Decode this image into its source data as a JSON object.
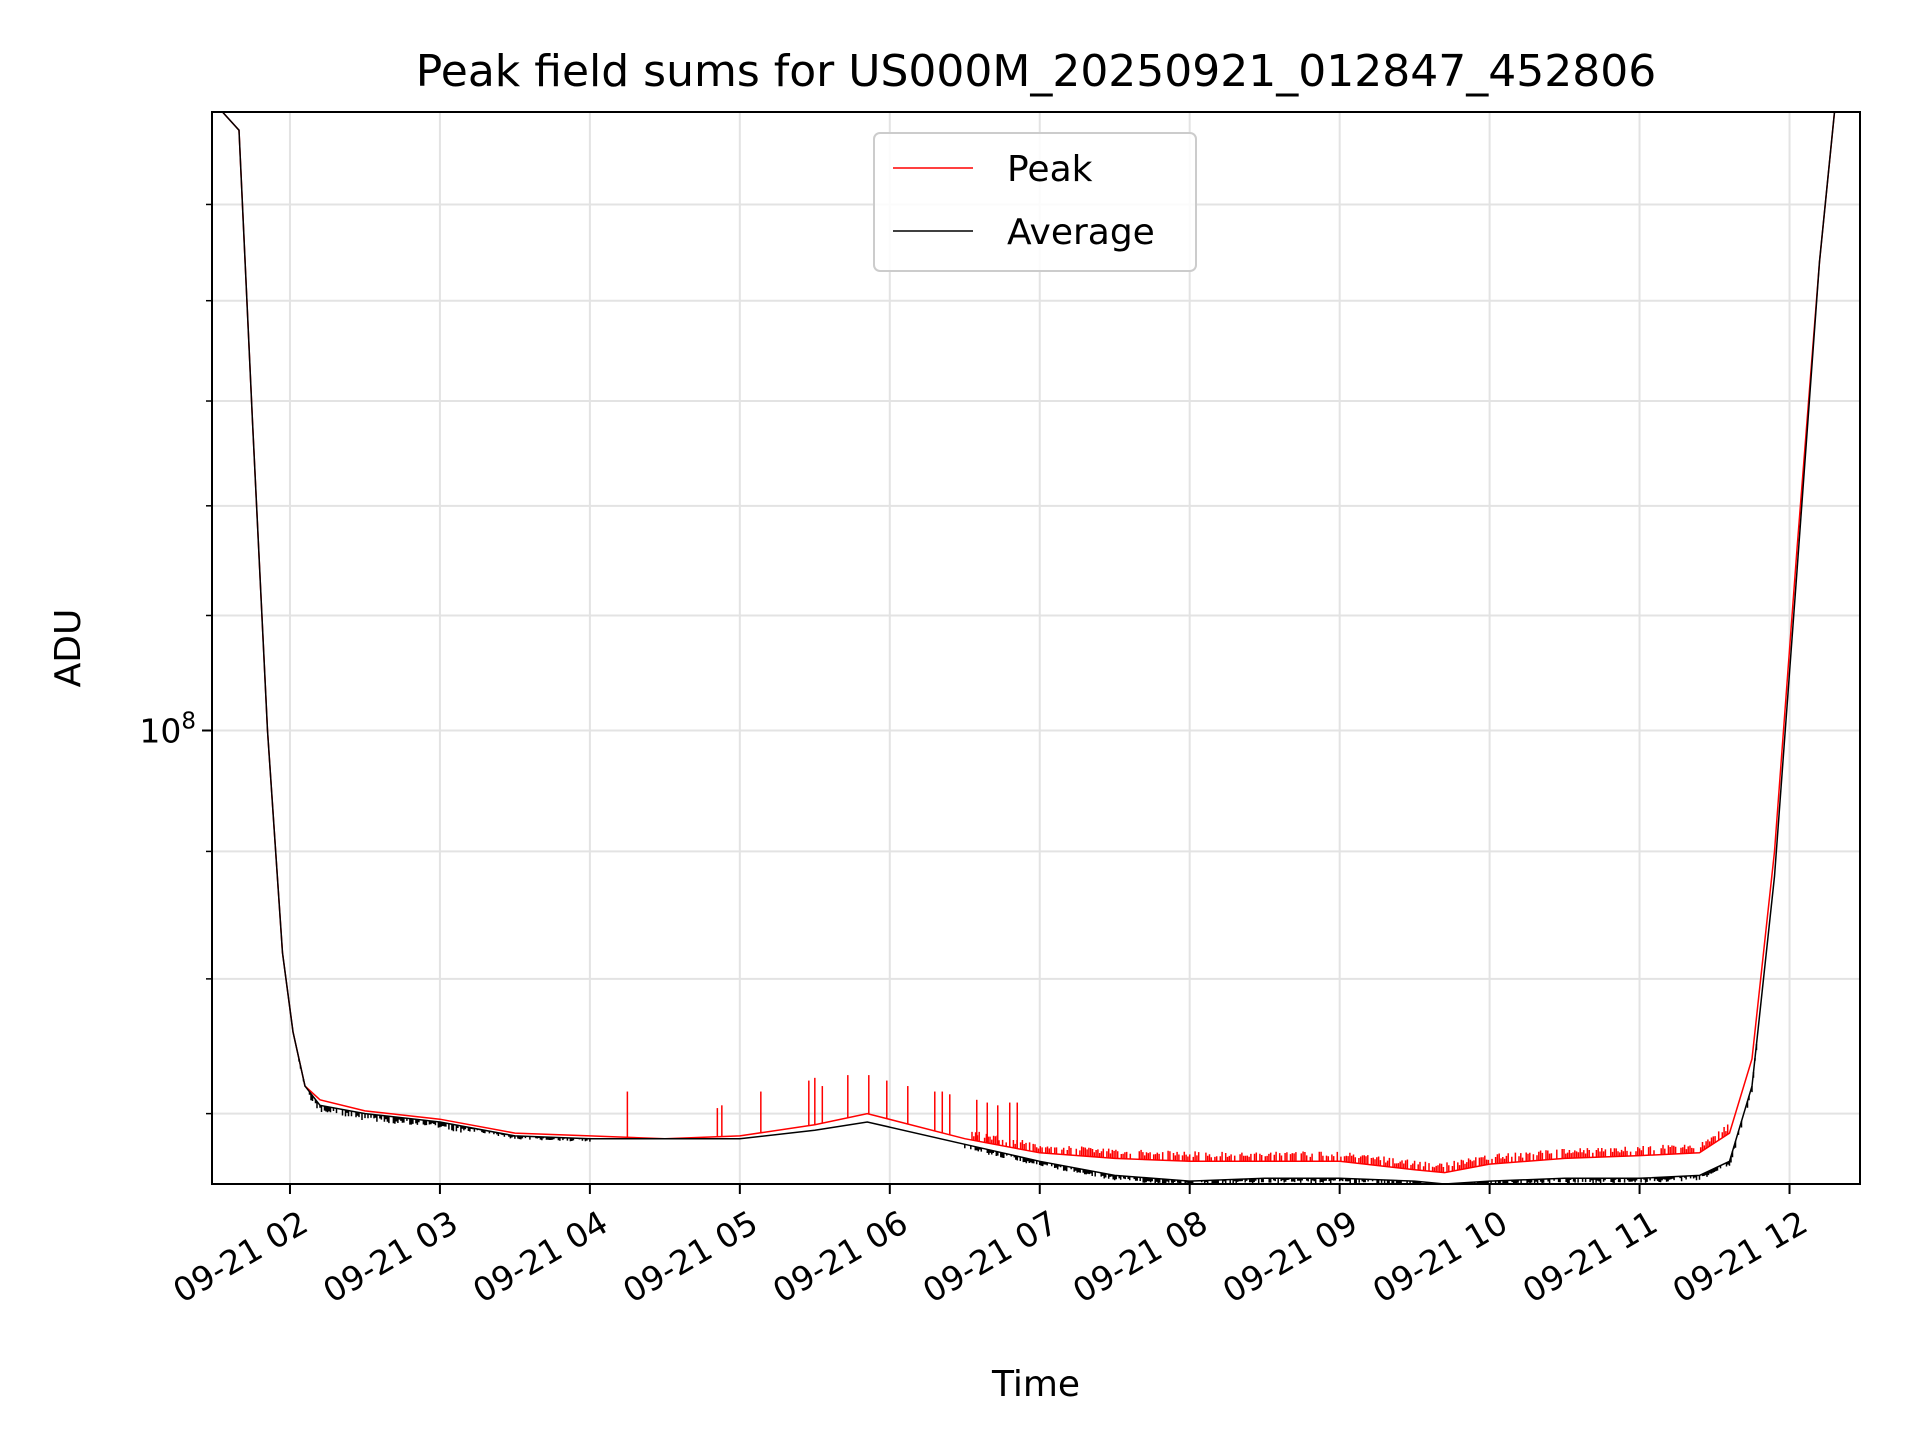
{
  "chart_data": {
    "type": "line",
    "title": "Peak field sums for US000M_20250921_012847_452806",
    "xlabel": "Time",
    "ylabel": "ADU",
    "yscale": "log",
    "grid": true,
    "legend_position": "upper-center",
    "x_range_hours": [
      1.48,
      12.47
    ],
    "ylim": [
      82500000.0,
      130000000.0
    ],
    "x_ticks": [
      {
        "hour": 2,
        "label": "09-21 02"
      },
      {
        "hour": 3,
        "label": "09-21 03"
      },
      {
        "hour": 4,
        "label": "09-21 04"
      },
      {
        "hour": 5,
        "label": "09-21 05"
      },
      {
        "hour": 6,
        "label": "09-21 06"
      },
      {
        "hour": 7,
        "label": "09-21 07"
      },
      {
        "hour": 8,
        "label": "09-21 08"
      },
      {
        "hour": 9,
        "label": "09-21 09"
      },
      {
        "hour": 10,
        "label": "09-21 10"
      },
      {
        "hour": 11,
        "label": "09-21 11"
      },
      {
        "hour": 12,
        "label": "09-21 12"
      }
    ],
    "y_major_ticks": [
      {
        "value": 100000000.0,
        "base": "10",
        "exponent": "8"
      }
    ],
    "y_minor_ticks": [
      85000000.0,
      90000000.0,
      95000000.0,
      105000000.0,
      110000000.0,
      115000000.0,
      120000000.0,
      125000000.0
    ],
    "series": [
      {
        "name": "Peak",
        "color": "#ff0000",
        "x_hours": [
          1.48,
          1.55,
          1.66,
          1.75,
          1.85,
          1.95,
          2.02,
          2.1,
          2.2,
          2.5,
          3.0,
          3.5,
          4.0,
          4.5,
          5.0,
          5.5,
          5.85,
          6.5,
          7.0,
          7.5,
          8.0,
          8.5,
          9.0,
          9.5,
          9.7,
          10.0,
          10.5,
          11.0,
          11.4,
          11.6,
          11.75,
          11.9,
          12.05,
          12.2,
          12.3,
          12.47
        ],
        "values": [
          130000000.0,
          130000000.0,
          129000000.0,
          114000000.0,
          100000000.0,
          91000000.0,
          88000000.0,
          86000000.0,
          85500000.0,
          85100000.0,
          84800000.0,
          84300000.0,
          84200000.0,
          84100000.0,
          84200000.0,
          84600000.0,
          85000000.0,
          84100000.0,
          83600000.0,
          83400000.0,
          83300000.0,
          83300000.0,
          83300000.0,
          83000000.0,
          82900000.0,
          83200000.0,
          83400000.0,
          83500000.0,
          83600000.0,
          84300000.0,
          87000000.0,
          95000000.0,
          108000000.0,
          122000000.0,
          130000000.0,
          130000000.0
        ],
        "spikes": [
          {
            "hour": 4.25,
            "value": 85800000.0
          },
          {
            "hour": 4.85,
            "value": 85200000.0
          },
          {
            "hour": 4.88,
            "value": 85300000.0
          },
          {
            "hour": 5.14,
            "value": 85800000.0
          },
          {
            "hour": 5.46,
            "value": 86200000.0
          },
          {
            "hour": 5.5,
            "value": 86300000.0
          },
          {
            "hour": 5.55,
            "value": 86000000.0
          },
          {
            "hour": 5.72,
            "value": 86400000.0
          },
          {
            "hour": 5.86,
            "value": 86400000.0
          },
          {
            "hour": 5.98,
            "value": 86200000.0
          },
          {
            "hour": 6.12,
            "value": 86000000.0
          },
          {
            "hour": 6.3,
            "value": 85800000.0
          },
          {
            "hour": 6.35,
            "value": 85800000.0
          },
          {
            "hour": 6.4,
            "value": 85700000.0
          },
          {
            "hour": 6.58,
            "value": 85500000.0
          },
          {
            "hour": 6.65,
            "value": 85400000.0
          },
          {
            "hour": 6.72,
            "value": 85300000.0
          },
          {
            "hour": 6.8,
            "value": 85400000.0
          },
          {
            "hour": 6.85,
            "value": 85400000.0
          }
        ]
      },
      {
        "name": "Average",
        "color": "#000000",
        "x_hours": [
          1.48,
          1.55,
          1.66,
          1.75,
          1.85,
          1.95,
          2.02,
          2.1,
          2.2,
          2.5,
          3.0,
          3.5,
          4.0,
          4.5,
          5.0,
          5.5,
          5.85,
          6.5,
          7.0,
          7.5,
          8.0,
          8.5,
          9.0,
          9.5,
          9.7,
          10.0,
          10.5,
          11.0,
          11.4,
          11.6,
          11.75,
          11.9,
          12.05,
          12.2,
          12.3,
          12.47
        ],
        "values": [
          130000000.0,
          130000000.0,
          129000000.0,
          114000000.0,
          100000000.0,
          91000000.0,
          88000000.0,
          86000000.0,
          85300000.0,
          85000000.0,
          84700000.0,
          84200000.0,
          84100000.0,
          84100000.0,
          84100000.0,
          84400000.0,
          84700000.0,
          83900000.0,
          83300000.0,
          82800000.0,
          82600000.0,
          82700000.0,
          82700000.0,
          82600000.0,
          82500000.0,
          82600000.0,
          82700000.0,
          82700000.0,
          82800000.0,
          83300000.0,
          86000000.0,
          94000000.0,
          107000000.0,
          122000000.0,
          130000000.0,
          130000000.0
        ]
      }
    ],
    "noise_band": {
      "start_hour": 6.5,
      "end_hour": 11.6,
      "peak_above": 350000.0,
      "average_below": 180000.0
    }
  }
}
